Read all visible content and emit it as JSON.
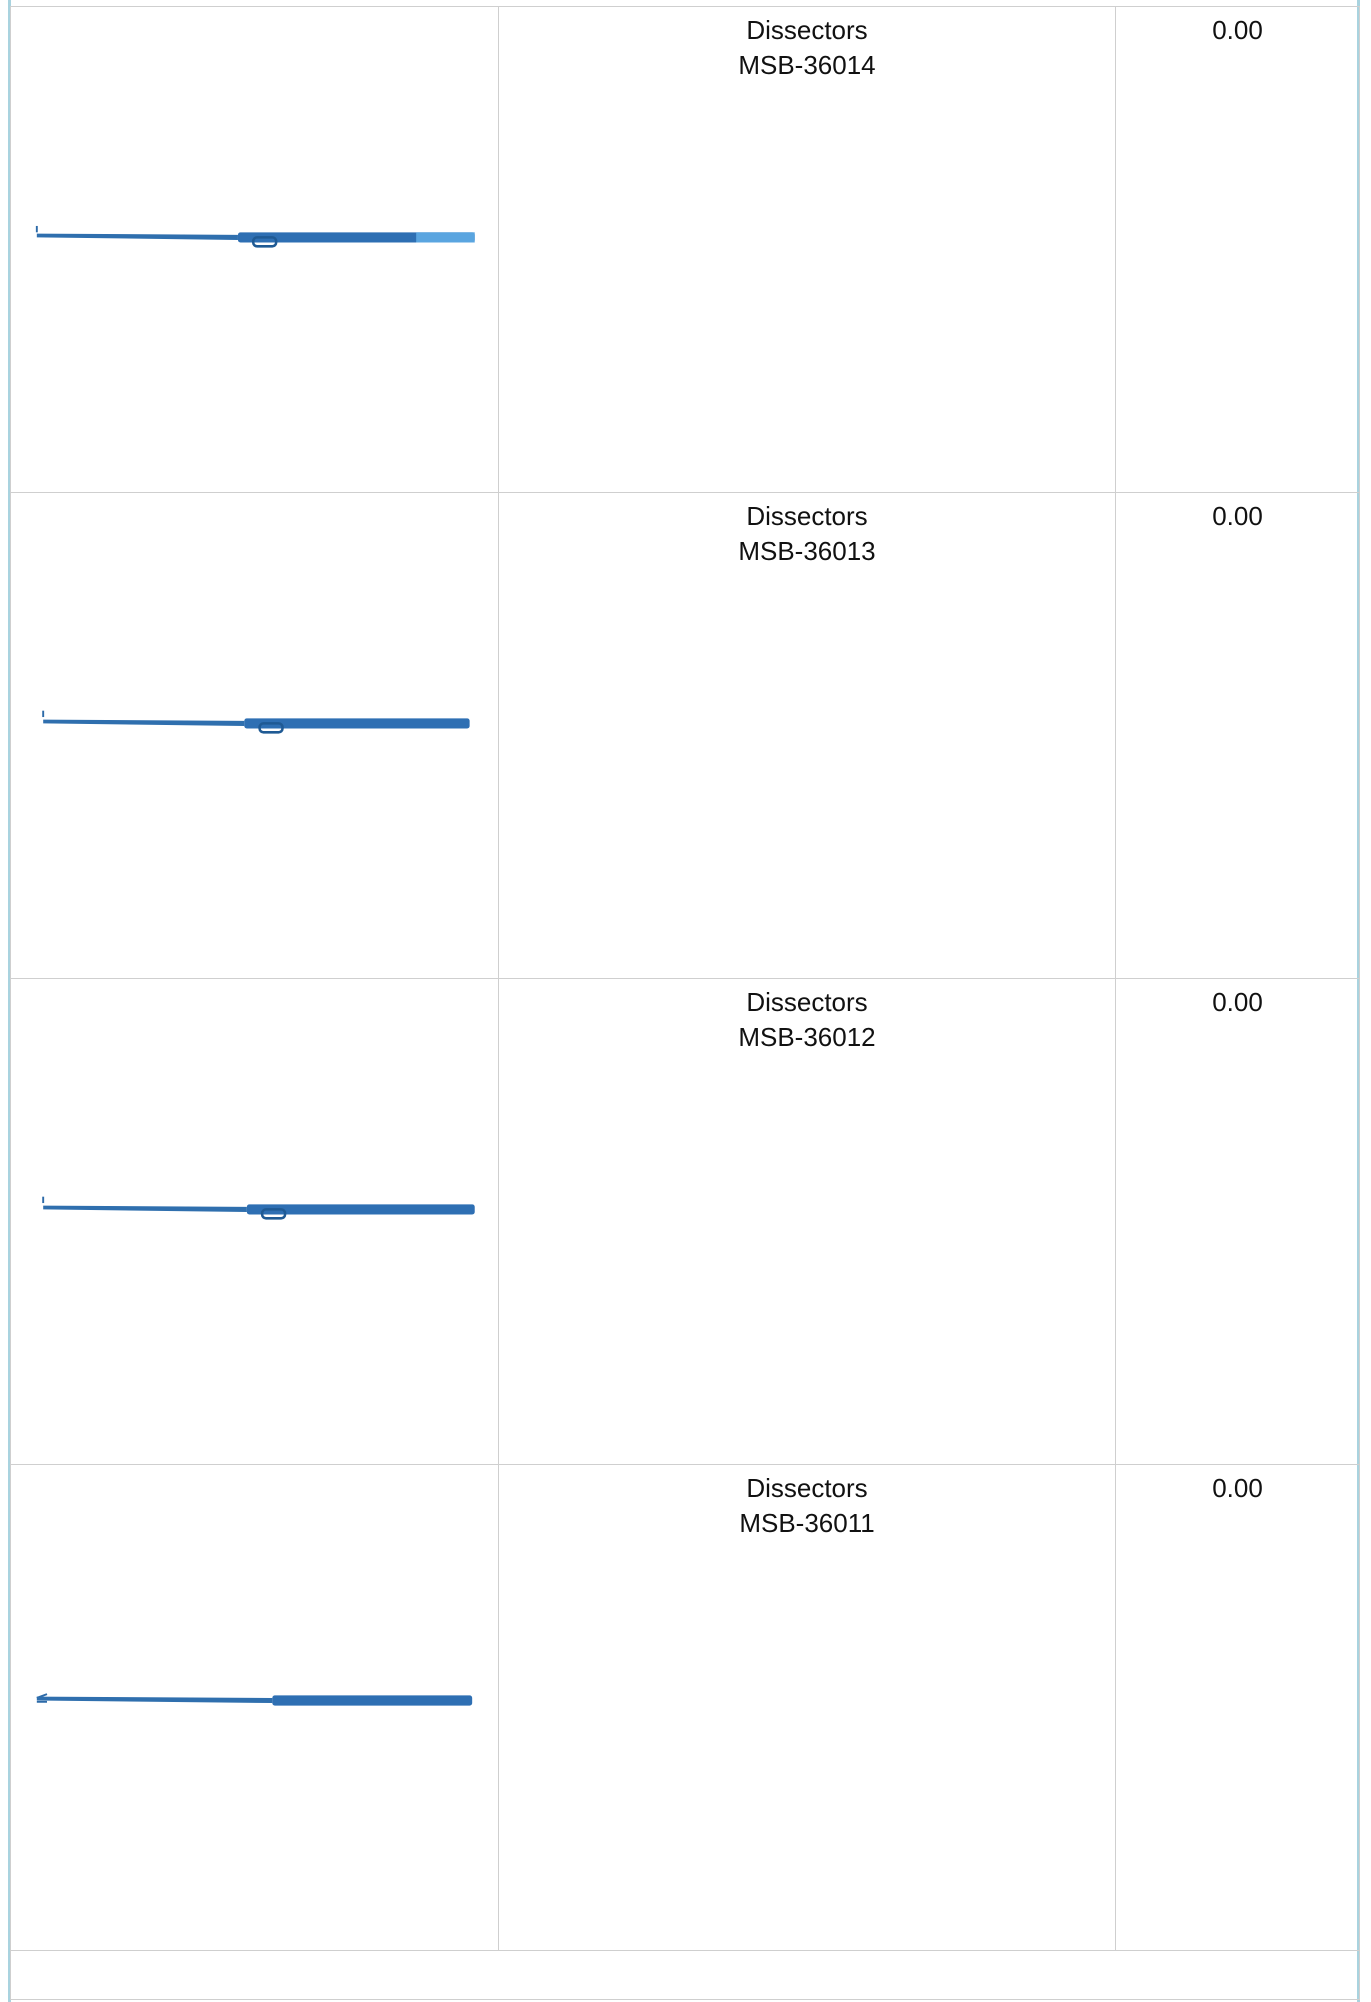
{
  "table": {
    "rows": [
      {
        "name": "Dissectors",
        "code": "MSB-36014",
        "price": "0.00"
      },
      {
        "name": "Dissectors",
        "code": "MSB-36013",
        "price": "0.00"
      },
      {
        "name": "Dissectors",
        "code": "MSB-36012",
        "price": "0.00"
      },
      {
        "name": "Dissectors",
        "code": "MSB-36011",
        "price": "0.00"
      }
    ]
  }
}
